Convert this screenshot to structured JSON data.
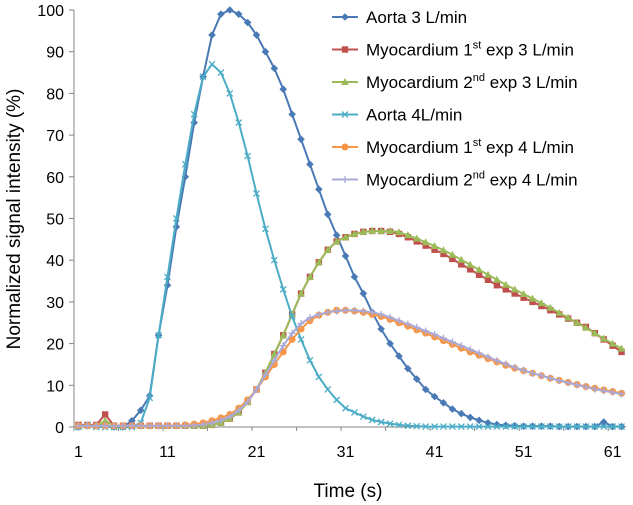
{
  "chart_data": {
    "type": "line",
    "title": "",
    "xlabel": "Time (s)",
    "ylabel": "Normalized signal intensity (%)",
    "xlim": [
      1,
      62
    ],
    "ylim": [
      0,
      100
    ],
    "x_ticks": [
      "1",
      "11",
      "21",
      "31",
      "41",
      "51",
      "61"
    ],
    "y_ticks": [
      "0",
      "10",
      "20",
      "30",
      "40",
      "50",
      "60",
      "70",
      "80",
      "90",
      "100"
    ],
    "grid": false,
    "legend_position": "top-right",
    "x": [
      1,
      2,
      3,
      4,
      5,
      6,
      7,
      8,
      9,
      10,
      11,
      12,
      13,
      14,
      15,
      16,
      17,
      18,
      19,
      20,
      21,
      22,
      23,
      24,
      25,
      26,
      27,
      28,
      29,
      30,
      31,
      32,
      33,
      34,
      35,
      36,
      37,
      38,
      39,
      40,
      41,
      42,
      43,
      44,
      45,
      46,
      47,
      48,
      49,
      50,
      51,
      52,
      53,
      54,
      55,
      56,
      57,
      58,
      59,
      60,
      61,
      62
    ],
    "series": [
      {
        "name": "Aorta 3 L/min",
        "color": "#4a7ab5",
        "marker": "diamond",
        "values": [
          0,
          0.3,
          0.3,
          0.5,
          0,
          0,
          1.5,
          4,
          7.5,
          22,
          34,
          48,
          60,
          73,
          84,
          94,
          99,
          100,
          99,
          97,
          94,
          90,
          86,
          81,
          75,
          69,
          63,
          57,
          51,
          46,
          41,
          36,
          32,
          27.5,
          23.5,
          20,
          17,
          14,
          11.5,
          9,
          7.3,
          5.8,
          4.3,
          3.2,
          2.3,
          1.6,
          1,
          0.6,
          0.4,
          0.3,
          0.2,
          0.2,
          0.2,
          0.2,
          0.1,
          0.1,
          0.1,
          0.1,
          0.1,
          1.2,
          0.1,
          0.1
        ]
      },
      {
        "name": "Myocardium 1st exp 3 L/min",
        "name_parts": [
          "Myocardium 1",
          "st",
          " exp 3 L/min"
        ],
        "color": "#c0504d",
        "marker": "square",
        "values": [
          0.5,
          0.5,
          0.5,
          3,
          0.3,
          0.3,
          0.3,
          0.3,
          0.3,
          0.3,
          0.3,
          0.3,
          0.3,
          0.3,
          0.3,
          0.5,
          1,
          2,
          3.5,
          6,
          9,
          13,
          17.5,
          22,
          27,
          32,
          36,
          39.5,
          42.5,
          44.5,
          45.5,
          46.3,
          46.8,
          47,
          47,
          46.8,
          46.3,
          45.5,
          44.5,
          43.5,
          42.5,
          41.5,
          40.3,
          39,
          37.8,
          36.5,
          35.3,
          34,
          33,
          32,
          31,
          30,
          29,
          28,
          27,
          26,
          25,
          24,
          22.5,
          21,
          19.5,
          18
        ]
      },
      {
        "name": "Myocardium 2nd exp 3 L/min",
        "name_parts": [
          "Myocardium 2",
          "nd",
          " exp 3 L/min"
        ],
        "color": "#9bbb59",
        "marker": "triangle",
        "values": [
          0.3,
          0.3,
          0.3,
          1.5,
          0.3,
          0.3,
          0.3,
          0.3,
          0.3,
          0.3,
          0.3,
          0.3,
          0.3,
          0.3,
          0.3,
          0.5,
          1,
          2,
          3.5,
          6,
          9,
          13,
          17.5,
          22,
          27,
          32,
          36,
          39.5,
          42.5,
          44.5,
          45.5,
          46.3,
          46.8,
          47,
          47,
          47,
          46.7,
          46,
          45.2,
          44.3,
          43.4,
          42.4,
          41.3,
          40.1,
          38.9,
          37.7,
          36.5,
          35.3,
          34.1,
          33,
          31.9,
          30.8,
          29.7,
          28.6,
          27.4,
          26.2,
          25,
          23.8,
          22.5,
          21.2,
          20,
          18.8
        ]
      },
      {
        "name": "Aorta 4L/min",
        "color": "#4bacc6",
        "marker": "x",
        "values": [
          0,
          0.5,
          0,
          0,
          0,
          0,
          0,
          1,
          7,
          22,
          36,
          50,
          63,
          75,
          84,
          87,
          85,
          80,
          73,
          65,
          56,
          47.5,
          40,
          33,
          26.5,
          21,
          16,
          12,
          9,
          6.5,
          4.5,
          3.5,
          2.5,
          1.7,
          1.2,
          0.8,
          0.5,
          0.3,
          0.2,
          0.1,
          0.1,
          0.1,
          0.1,
          0.1,
          0.1,
          0.1,
          0.1,
          0.1,
          0.1,
          0.1,
          0.1,
          0.1,
          0.1,
          0.1,
          0.1,
          0.1,
          0.1,
          0.1,
          0.1,
          0.1,
          0.1,
          0.1
        ]
      },
      {
        "name": "Myocardium 1st exp 4 L/min",
        "name_parts": [
          "Myocardium 1",
          "st",
          " exp 4 L/min"
        ],
        "color": "#f79646",
        "marker": "circle",
        "values": [
          0.3,
          0.3,
          0.3,
          0.3,
          0.3,
          0.3,
          0.3,
          0.3,
          0.3,
          0.3,
          0.3,
          0.3,
          0.5,
          0.7,
          1,
          1.5,
          2.2,
          3,
          4.5,
          6.5,
          9,
          12,
          15,
          18,
          21,
          23.5,
          25.5,
          26.8,
          27.5,
          28,
          28,
          27.8,
          27.5,
          27,
          26.5,
          25.8,
          25,
          24.2,
          23.3,
          22.5,
          21.6,
          20.7,
          19.8,
          18.9,
          18,
          17.2,
          16.4,
          15.6,
          14.8,
          14.1,
          13.5,
          12.9,
          12.3,
          11.7,
          11.2,
          10.7,
          10.2,
          9.7,
          9.3,
          8.9,
          8.5,
          8.1
        ]
      },
      {
        "name": "Myocardium 2nd exp 4 L/min",
        "name_parts": [
          "Myocardium 2",
          "nd",
          " exp 4 L/min"
        ],
        "color": "#a9a9d9",
        "marker": "cross",
        "values": [
          0.3,
          0.3,
          0.3,
          0.3,
          0.3,
          0.3,
          0.3,
          0.3,
          0.3,
          0.3,
          0.3,
          0.3,
          0.3,
          0.4,
          0.6,
          1,
          1.6,
          2.5,
          4,
          6,
          9,
          12.5,
          16,
          19.5,
          22.5,
          24.8,
          26.2,
          27,
          27.5,
          27.8,
          28,
          28,
          27.8,
          27.5,
          27,
          26.3,
          25.5,
          24.7,
          23.9,
          23,
          22.2,
          21.3,
          20.4,
          19.5,
          18.6,
          17.7,
          16.8,
          15.9,
          15.1,
          14.3,
          13.6,
          12.9,
          12.3,
          11.7,
          11.1,
          10.6,
          10.1,
          9.6,
          9.1,
          8.7,
          8.3,
          7.9
        ]
      }
    ]
  }
}
